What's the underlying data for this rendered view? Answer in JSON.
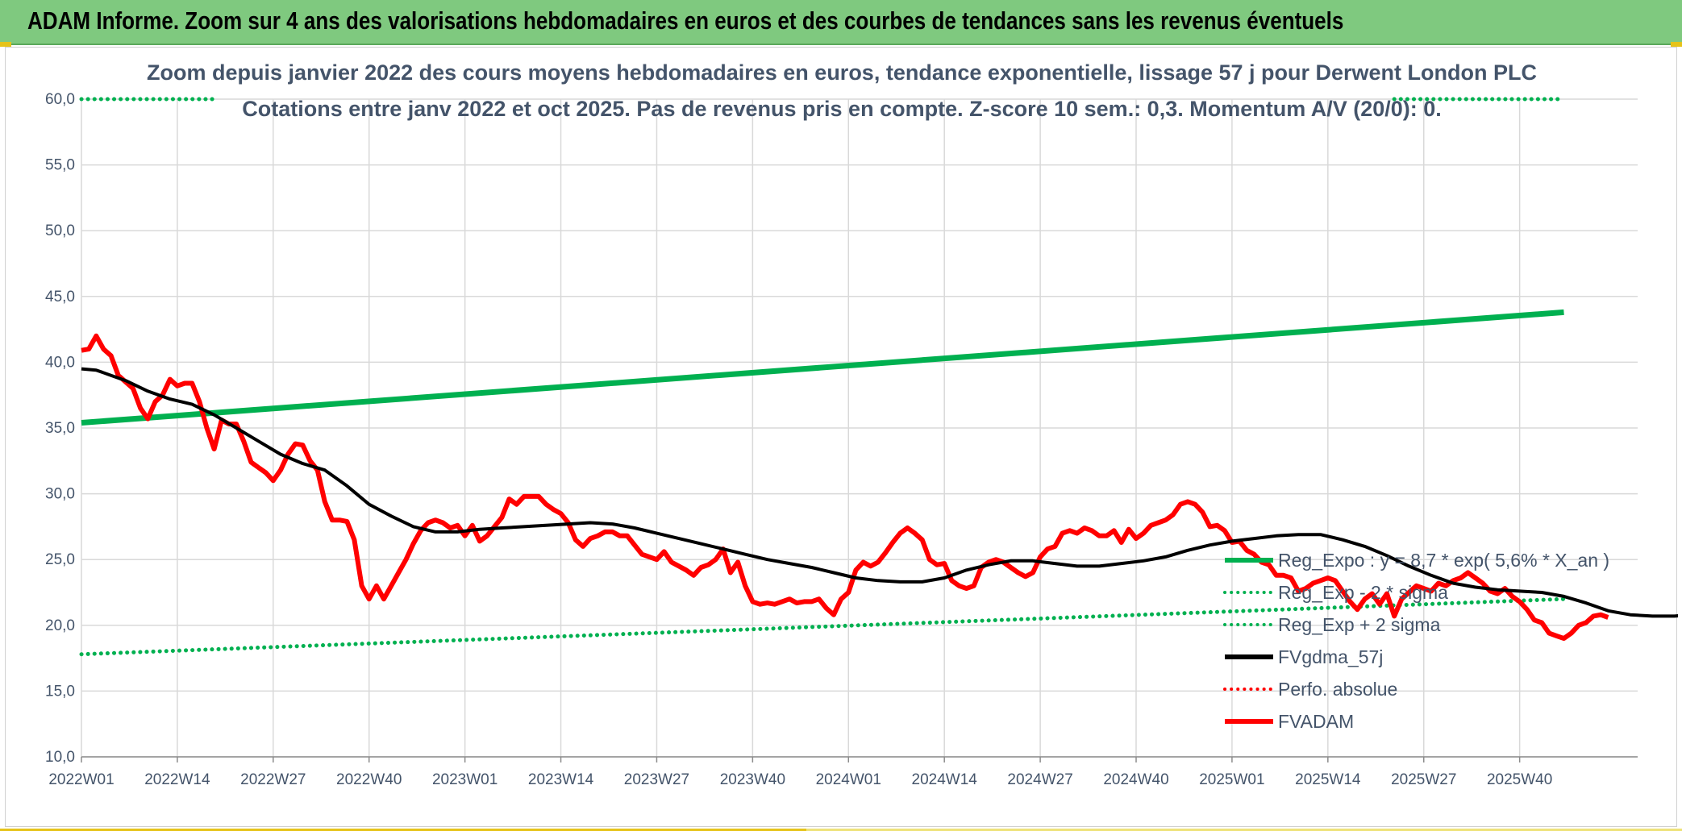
{
  "header": {
    "title": "ADAM Informe. Zoom sur 4 ans des valorisations hebdomadaires en euros et des courbes de tendances sans les revenus éventuels"
  },
  "chart_data": {
    "type": "line",
    "subtitle_line1": "Zoom depuis janvier 2022 des cours moyens hebdomadaires en euros, tendance exponentielle, lissage 57 j pour Derwent London PLC",
    "subtitle_line2": "Cotations entre janv 2022 et oct 2025. Pas de revenus pris en compte. Z-score 10 sem.: 0,3. Momentum A/V (20/0): 0.",
    "ylim": [
      10,
      60
    ],
    "y_ticks": [
      "10,0",
      "15,0",
      "20,0",
      "25,0",
      "30,0",
      "35,0",
      "40,0",
      "45,0",
      "50,0",
      "55,0",
      "60,0"
    ],
    "x_ticks": [
      "2022W01",
      "2022W14",
      "2022W27",
      "2022W40",
      "2023W01",
      "2023W14",
      "2023W27",
      "2023W40",
      "2024W01",
      "2024W14",
      "2024W27",
      "2024W40",
      "2025W01",
      "2025W14",
      "2025W27",
      "2025W40"
    ],
    "grid": true,
    "legend_position": "right",
    "series": [
      {
        "name": "Reg_Expo : y = 8,7 * exp( 5,6% *  X_an )",
        "color": "#00b050",
        "style": "solid",
        "points": [
          [
            0,
            35.4
          ],
          [
            201,
            43.8
          ]
        ]
      },
      {
        "name": "Reg_Exp - 2 * sigma",
        "color": "#00b050",
        "style": "dotted",
        "points": [
          [
            0,
            17.8
          ],
          [
            201,
            22.0
          ]
        ]
      },
      {
        "name": "Reg_Exp + 2 sigma",
        "color": "#00b050",
        "style": "dotted",
        "points": [
          [
            0,
            60.0
          ],
          [
            18,
            60.0
          ],
          [
            178,
            60.0
          ],
          [
            201,
            60.0
          ]
        ]
      },
      {
        "name": "FVgdma_57j",
        "color": "#000000",
        "style": "solid",
        "points": [
          [
            0,
            39.5
          ],
          [
            2,
            39.4
          ],
          [
            4,
            39.0
          ],
          [
            6,
            38.6
          ],
          [
            9,
            37.8
          ],
          [
            12,
            37.2
          ],
          [
            15,
            36.8
          ],
          [
            18,
            36.0
          ],
          [
            21,
            35.0
          ],
          [
            24,
            34.0
          ],
          [
            27,
            33.0
          ],
          [
            30,
            32.3
          ],
          [
            33,
            31.8
          ],
          [
            36,
            30.6
          ],
          [
            39,
            29.2
          ],
          [
            42,
            28.3
          ],
          [
            45,
            27.5
          ],
          [
            48,
            27.1
          ],
          [
            51,
            27.1
          ],
          [
            54,
            27.3
          ],
          [
            57,
            27.4
          ],
          [
            60,
            27.5
          ],
          [
            63,
            27.6
          ],
          [
            66,
            27.7
          ],
          [
            69,
            27.8
          ],
          [
            72,
            27.7
          ],
          [
            75,
            27.4
          ],
          [
            78,
            27.0
          ],
          [
            81,
            26.6
          ],
          [
            84,
            26.2
          ],
          [
            87,
            25.8
          ],
          [
            90,
            25.4
          ],
          [
            93,
            25.0
          ],
          [
            96,
            24.7
          ],
          [
            99,
            24.4
          ],
          [
            102,
            24.0
          ],
          [
            105,
            23.6
          ],
          [
            108,
            23.4
          ],
          [
            111,
            23.3
          ],
          [
            114,
            23.3
          ],
          [
            117,
            23.6
          ],
          [
            120,
            24.2
          ],
          [
            123,
            24.6
          ],
          [
            126,
            24.9
          ],
          [
            129,
            24.9
          ],
          [
            132,
            24.7
          ],
          [
            135,
            24.5
          ],
          [
            138,
            24.5
          ],
          [
            141,
            24.7
          ],
          [
            144,
            24.9
          ],
          [
            147,
            25.2
          ],
          [
            150,
            25.7
          ],
          [
            153,
            26.1
          ],
          [
            156,
            26.4
          ],
          [
            159,
            26.6
          ],
          [
            162,
            26.8
          ],
          [
            165,
            26.9
          ],
          [
            168,
            26.9
          ],
          [
            171,
            26.5
          ],
          [
            174,
            26.0
          ],
          [
            177,
            25.3
          ],
          [
            180,
            24.5
          ],
          [
            183,
            23.8
          ],
          [
            186,
            23.2
          ],
          [
            189,
            22.9
          ],
          [
            192,
            22.7
          ],
          [
            195,
            22.6
          ],
          [
            198,
            22.5
          ],
          [
            201,
            22.2
          ],
          [
            204,
            21.7
          ],
          [
            207,
            21.1
          ],
          [
            210,
            20.8
          ],
          [
            213,
            20.7
          ],
          [
            216,
            20.7
          ],
          [
            218,
            20.8
          ]
        ]
      },
      {
        "name": "Perfo. absolue",
        "color": "#ff0000",
        "style": "dotted",
        "points": []
      },
      {
        "name": "FVADAM",
        "color": "#ff0000",
        "style": "solid",
        "points": [
          [
            0,
            40.9
          ],
          [
            1,
            41.0
          ],
          [
            2,
            42.0
          ],
          [
            3,
            41.0
          ],
          [
            4,
            40.5
          ],
          [
            5,
            39.0
          ],
          [
            6,
            38.5
          ],
          [
            7,
            38.0
          ],
          [
            8,
            36.5
          ],
          [
            9,
            35.7
          ],
          [
            10,
            37.0
          ],
          [
            11,
            37.5
          ],
          [
            12,
            38.7
          ],
          [
            13,
            38.2
          ],
          [
            14,
            38.4
          ],
          [
            15,
            38.4
          ],
          [
            16,
            37.0
          ],
          [
            17,
            35.0
          ],
          [
            18,
            33.4
          ],
          [
            19,
            35.6
          ],
          [
            20,
            35.3
          ],
          [
            21,
            35.3
          ],
          [
            22,
            34.0
          ],
          [
            23,
            32.4
          ],
          [
            24,
            32.0
          ],
          [
            25,
            31.6
          ],
          [
            26,
            31.0
          ],
          [
            27,
            31.8
          ],
          [
            28,
            33.0
          ],
          [
            29,
            33.8
          ],
          [
            30,
            33.7
          ],
          [
            31,
            32.5
          ],
          [
            32,
            31.8
          ],
          [
            33,
            29.4
          ],
          [
            34,
            28.0
          ],
          [
            35,
            28.0
          ],
          [
            36,
            27.9
          ],
          [
            37,
            26.5
          ],
          [
            38,
            23.0
          ],
          [
            39,
            22.0
          ],
          [
            40,
            23.0
          ],
          [
            41,
            22.0
          ],
          [
            42,
            23.0
          ],
          [
            43,
            24.0
          ],
          [
            44,
            25.0
          ],
          [
            45,
            26.2
          ],
          [
            46,
            27.2
          ],
          [
            47,
            27.8
          ],
          [
            48,
            28.0
          ],
          [
            49,
            27.8
          ],
          [
            50,
            27.4
          ],
          [
            51,
            27.6
          ],
          [
            52,
            26.8
          ],
          [
            53,
            27.6
          ],
          [
            54,
            26.4
          ],
          [
            55,
            26.8
          ],
          [
            56,
            27.5
          ],
          [
            57,
            28.2
          ],
          [
            58,
            29.6
          ],
          [
            59,
            29.2
          ],
          [
            60,
            29.8
          ],
          [
            61,
            29.8
          ],
          [
            62,
            29.8
          ],
          [
            63,
            29.2
          ],
          [
            64,
            28.8
          ],
          [
            65,
            28.5
          ],
          [
            66,
            27.8
          ],
          [
            67,
            26.5
          ],
          [
            68,
            26.0
          ],
          [
            69,
            26.6
          ],
          [
            70,
            26.8
          ],
          [
            71,
            27.1
          ],
          [
            72,
            27.1
          ],
          [
            73,
            26.8
          ],
          [
            74,
            26.8
          ],
          [
            75,
            26.1
          ],
          [
            76,
            25.4
          ],
          [
            77,
            25.2
          ],
          [
            78,
            25.0
          ],
          [
            79,
            25.6
          ],
          [
            80,
            24.8
          ],
          [
            81,
            24.5
          ],
          [
            82,
            24.2
          ],
          [
            83,
            23.8
          ],
          [
            84,
            24.4
          ],
          [
            85,
            24.6
          ],
          [
            86,
            25.0
          ],
          [
            87,
            25.8
          ],
          [
            88,
            24.0
          ],
          [
            89,
            24.8
          ],
          [
            90,
            23.0
          ],
          [
            91,
            21.8
          ],
          [
            92,
            21.6
          ],
          [
            93,
            21.7
          ],
          [
            94,
            21.6
          ],
          [
            95,
            21.8
          ],
          [
            96,
            22.0
          ],
          [
            97,
            21.7
          ],
          [
            98,
            21.8
          ],
          [
            99,
            21.8
          ],
          [
            100,
            22.0
          ],
          [
            101,
            21.3
          ],
          [
            102,
            20.8
          ],
          [
            103,
            22.0
          ],
          [
            104,
            22.5
          ],
          [
            105,
            24.2
          ],
          [
            106,
            24.8
          ],
          [
            107,
            24.5
          ],
          [
            108,
            24.8
          ],
          [
            109,
            25.5
          ],
          [
            110,
            26.3
          ],
          [
            111,
            27.0
          ],
          [
            112,
            27.4
          ],
          [
            113,
            27.0
          ],
          [
            114,
            26.5
          ],
          [
            115,
            25.0
          ],
          [
            116,
            24.6
          ],
          [
            117,
            24.7
          ],
          [
            118,
            23.4
          ],
          [
            119,
            23.0
          ],
          [
            120,
            22.8
          ],
          [
            121,
            23.0
          ],
          [
            122,
            24.4
          ],
          [
            123,
            24.8
          ],
          [
            124,
            25.0
          ],
          [
            125,
            24.8
          ],
          [
            126,
            24.4
          ],
          [
            127,
            24.0
          ],
          [
            128,
            23.7
          ],
          [
            129,
            24.0
          ],
          [
            130,
            25.2
          ],
          [
            131,
            25.8
          ],
          [
            132,
            26.0
          ],
          [
            133,
            27.0
          ],
          [
            134,
            27.2
          ],
          [
            135,
            27.0
          ],
          [
            136,
            27.4
          ],
          [
            137,
            27.2
          ],
          [
            138,
            26.8
          ],
          [
            139,
            26.8
          ],
          [
            140,
            27.2
          ],
          [
            141,
            26.3
          ],
          [
            142,
            27.3
          ],
          [
            143,
            26.6
          ],
          [
            144,
            27.0
          ],
          [
            145,
            27.6
          ],
          [
            146,
            27.8
          ],
          [
            147,
            28.0
          ],
          [
            148,
            28.4
          ],
          [
            149,
            29.2
          ],
          [
            150,
            29.4
          ],
          [
            151,
            29.2
          ],
          [
            152,
            28.6
          ],
          [
            153,
            27.5
          ],
          [
            154,
            27.6
          ],
          [
            155,
            27.2
          ],
          [
            156,
            26.3
          ],
          [
            157,
            26.4
          ],
          [
            158,
            25.7
          ],
          [
            159,
            25.4
          ],
          [
            160,
            24.8
          ],
          [
            161,
            24.6
          ],
          [
            162,
            23.8
          ],
          [
            163,
            23.8
          ],
          [
            164,
            23.6
          ],
          [
            165,
            22.6
          ],
          [
            166,
            22.8
          ],
          [
            167,
            23.2
          ],
          [
            168,
            23.4
          ],
          [
            169,
            23.6
          ],
          [
            170,
            23.4
          ],
          [
            171,
            22.6
          ],
          [
            172,
            21.8
          ],
          [
            173,
            21.2
          ],
          [
            174,
            22.0
          ],
          [
            175,
            22.4
          ],
          [
            176,
            21.6
          ],
          [
            177,
            22.4
          ],
          [
            178,
            20.7
          ],
          [
            179,
            22.0
          ],
          [
            180,
            22.5
          ],
          [
            181,
            23.0
          ],
          [
            182,
            22.8
          ],
          [
            183,
            22.6
          ],
          [
            184,
            23.2
          ],
          [
            185,
            23.0
          ],
          [
            186,
            23.4
          ],
          [
            187,
            23.6
          ],
          [
            188,
            24.0
          ],
          [
            189,
            23.6
          ],
          [
            190,
            23.2
          ],
          [
            191,
            22.6
          ],
          [
            192,
            22.4
          ],
          [
            193,
            22.8
          ],
          [
            194,
            22.2
          ],
          [
            195,
            21.8
          ],
          [
            196,
            21.2
          ],
          [
            197,
            20.4
          ],
          [
            198,
            20.2
          ],
          [
            199,
            19.4
          ],
          [
            200,
            19.2
          ],
          [
            201,
            19.0
          ],
          [
            202,
            19.4
          ],
          [
            203,
            20.0
          ],
          [
            204,
            20.2
          ],
          [
            205,
            20.7
          ],
          [
            206,
            20.8
          ],
          [
            207,
            20.6
          ]
        ]
      }
    ]
  }
}
